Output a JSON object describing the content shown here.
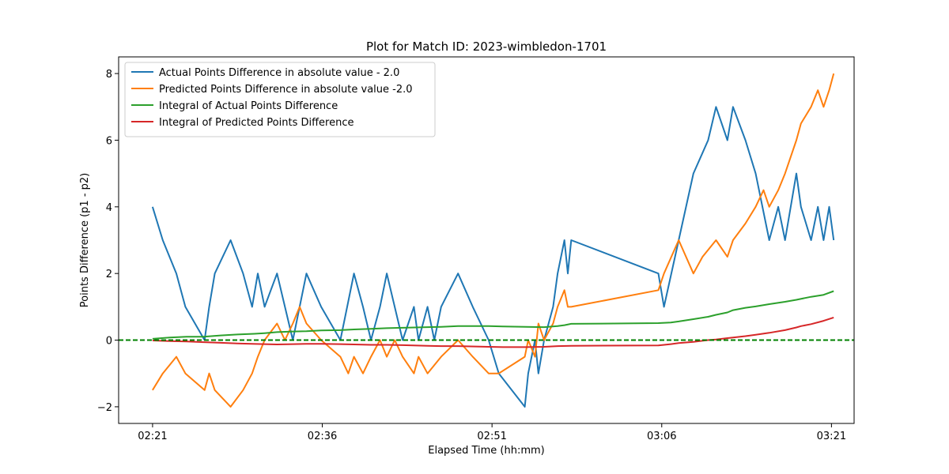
{
  "chart_data": {
    "type": "line",
    "title": "Plot for Match ID: 2023-wimbledon-1701",
    "xlabel": "Elapsed Time (hh:mm)",
    "ylabel": "Points Difference (p1 - p2)",
    "x_unit": "minutes since 02:21",
    "xlim": [
      -3,
      62
    ],
    "ylim": [
      -2.5,
      8.5
    ],
    "x_ticks": [
      {
        "value": 0,
        "label": "02:21"
      },
      {
        "value": 15,
        "label": "02:36"
      },
      {
        "value": 30,
        "label": "02:51"
      },
      {
        "value": 45,
        "label": "03:06"
      },
      {
        "value": 60,
        "label": "03:21"
      }
    ],
    "y_ticks": [
      {
        "value": -2,
        "label": "−2"
      },
      {
        "value": 0,
        "label": "0"
      },
      {
        "value": 2,
        "label": "2"
      },
      {
        "value": 4,
        "label": "4"
      },
      {
        "value": 6,
        "label": "6"
      },
      {
        "value": 8,
        "label": "8"
      }
    ],
    "reference_line": {
      "y": 0,
      "style": "dashed",
      "color": "#008000"
    },
    "legend_position": "upper-left",
    "grid": false,
    "series": [
      {
        "name": "Actual Points Difference in absolute value - 2.0",
        "color": "#1f77b4",
        "points": [
          [
            0,
            4
          ],
          [
            0.9,
            3
          ],
          [
            2.1,
            2
          ],
          [
            2.9,
            1
          ],
          [
            4.6,
            0
          ],
          [
            5.0,
            1
          ],
          [
            5.5,
            2
          ],
          [
            6.9,
            3
          ],
          [
            8.0,
            2
          ],
          [
            8.8,
            1
          ],
          [
            9.3,
            2
          ],
          [
            9.9,
            1
          ],
          [
            11.0,
            2
          ],
          [
            11.7,
            1
          ],
          [
            12.4,
            0
          ],
          [
            13.6,
            2
          ],
          [
            14.9,
            1
          ],
          [
            16.6,
            0
          ],
          [
            17.8,
            2
          ],
          [
            18.6,
            1
          ],
          [
            19.3,
            0
          ],
          [
            20.1,
            1
          ],
          [
            20.7,
            2
          ],
          [
            21.4,
            1
          ],
          [
            22.1,
            0
          ],
          [
            23.1,
            1
          ],
          [
            23.5,
            0
          ],
          [
            24.3,
            1
          ],
          [
            24.9,
            0
          ],
          [
            25.5,
            1
          ],
          [
            27.0,
            2
          ],
          [
            28.3,
            1
          ],
          [
            29.7,
            0
          ],
          [
            30.6,
            -1
          ],
          [
            32.9,
            -2
          ],
          [
            33.2,
            -1
          ],
          [
            33.8,
            0
          ],
          [
            34.1,
            -1
          ],
          [
            34.6,
            0
          ],
          [
            35.4,
            1
          ],
          [
            35.8,
            2
          ],
          [
            36.4,
            3
          ],
          [
            36.7,
            2
          ],
          [
            37.0,
            3
          ],
          [
            44.7,
            2
          ],
          [
            45.2,
            1
          ],
          [
            46.5,
            3
          ],
          [
            47.8,
            5
          ],
          [
            49.1,
            6
          ],
          [
            49.8,
            7
          ],
          [
            50.8,
            6
          ],
          [
            51.3,
            7
          ],
          [
            52.4,
            6
          ],
          [
            53.3,
            5
          ],
          [
            54.5,
            3
          ],
          [
            55.3,
            4
          ],
          [
            55.9,
            3
          ],
          [
            56.9,
            5
          ],
          [
            57.3,
            4
          ],
          [
            58.2,
            3
          ],
          [
            58.8,
            4
          ],
          [
            59.3,
            3
          ],
          [
            59.8,
            4
          ],
          [
            60.2,
            3
          ]
        ]
      },
      {
        "name": "Predicted Points Difference in absolute value -2.0",
        "color": "#ff7f0e",
        "points": [
          [
            0,
            -1.5
          ],
          [
            0.9,
            -1
          ],
          [
            2.1,
            -0.5
          ],
          [
            2.9,
            -1
          ],
          [
            4.6,
            -1.5
          ],
          [
            5.0,
            -1
          ],
          [
            5.5,
            -1.5
          ],
          [
            6.9,
            -2
          ],
          [
            8.0,
            -1.5
          ],
          [
            8.8,
            -1
          ],
          [
            9.3,
            -0.5
          ],
          [
            9.9,
            0
          ],
          [
            11.0,
            0.5
          ],
          [
            11.7,
            0
          ],
          [
            12.4,
            0.5
          ],
          [
            13.0,
            1
          ],
          [
            13.6,
            0.5
          ],
          [
            14.9,
            0
          ],
          [
            16.6,
            -0.5
          ],
          [
            17.3,
            -1
          ],
          [
            17.8,
            -0.5
          ],
          [
            18.6,
            -1
          ],
          [
            19.3,
            -0.5
          ],
          [
            20.1,
            0
          ],
          [
            20.7,
            -0.5
          ],
          [
            21.4,
            0
          ],
          [
            22.1,
            -0.5
          ],
          [
            23.1,
            -1
          ],
          [
            23.5,
            -0.5
          ],
          [
            24.3,
            -1
          ],
          [
            25.5,
            -0.5
          ],
          [
            27.0,
            0
          ],
          [
            28.3,
            -0.5
          ],
          [
            29.7,
            -1
          ],
          [
            30.6,
            -1
          ],
          [
            32.9,
            -0.5
          ],
          [
            33.2,
            0
          ],
          [
            33.8,
            -0.5
          ],
          [
            34.1,
            0.5
          ],
          [
            34.6,
            0
          ],
          [
            35.4,
            0.5
          ],
          [
            35.8,
            1
          ],
          [
            36.4,
            1.5
          ],
          [
            36.7,
            1
          ],
          [
            37.0,
            1
          ],
          [
            44.7,
            1.5
          ],
          [
            45.2,
            2
          ],
          [
            46.5,
            3
          ],
          [
            47.8,
            2
          ],
          [
            48.6,
            2.5
          ],
          [
            49.8,
            3
          ],
          [
            50.8,
            2.5
          ],
          [
            51.3,
            3
          ],
          [
            52.4,
            3.5
          ],
          [
            53.3,
            4
          ],
          [
            54.0,
            4.5
          ],
          [
            54.5,
            4
          ],
          [
            55.3,
            4.5
          ],
          [
            55.9,
            5
          ],
          [
            56.9,
            6
          ],
          [
            57.3,
            6.5
          ],
          [
            58.2,
            7
          ],
          [
            58.8,
            7.5
          ],
          [
            59.3,
            7
          ],
          [
            59.8,
            7.5
          ],
          [
            60.2,
            8
          ]
        ]
      },
      {
        "name": "Integral of Actual Points Difference",
        "color": "#2ca02c",
        "points": [
          [
            0,
            0.04
          ],
          [
            1.5,
            0.08
          ],
          [
            3.0,
            0.1
          ],
          [
            4.5,
            0.1
          ],
          [
            6.0,
            0.14
          ],
          [
            7.5,
            0.17
          ],
          [
            9.0,
            0.19
          ],
          [
            9.9,
            0.21
          ],
          [
            11.0,
            0.24
          ],
          [
            12.4,
            0.26
          ],
          [
            13.6,
            0.27
          ],
          [
            14.9,
            0.29
          ],
          [
            16.6,
            0.3
          ],
          [
            17.8,
            0.32
          ],
          [
            19.3,
            0.34
          ],
          [
            20.7,
            0.36
          ],
          [
            22.1,
            0.37
          ],
          [
            24.3,
            0.39
          ],
          [
            25.5,
            0.4
          ],
          [
            27.0,
            0.42
          ],
          [
            29.7,
            0.42
          ],
          [
            31.0,
            0.41
          ],
          [
            33.0,
            0.4
          ],
          [
            34.6,
            0.39
          ],
          [
            35.8,
            0.42
          ],
          [
            36.4,
            0.45
          ],
          [
            37.0,
            0.49
          ],
          [
            44.7,
            0.51
          ],
          [
            45.8,
            0.53
          ],
          [
            46.5,
            0.56
          ],
          [
            47.8,
            0.63
          ],
          [
            49.1,
            0.7
          ],
          [
            49.8,
            0.76
          ],
          [
            50.8,
            0.83
          ],
          [
            51.3,
            0.9
          ],
          [
            52.4,
            0.97
          ],
          [
            53.3,
            1.01
          ],
          [
            54.5,
            1.08
          ],
          [
            55.9,
            1.15
          ],
          [
            56.9,
            1.21
          ],
          [
            58.2,
            1.3
          ],
          [
            59.3,
            1.36
          ],
          [
            60.2,
            1.47
          ]
        ]
      },
      {
        "name": "Integral of Predicted Points Difference",
        "color": "#d62728",
        "points": [
          [
            0,
            -0.01
          ],
          [
            1.5,
            -0.03
          ],
          [
            3.0,
            -0.04
          ],
          [
            4.5,
            -0.06
          ],
          [
            6.0,
            -0.08
          ],
          [
            7.5,
            -0.1
          ],
          [
            8.8,
            -0.11
          ],
          [
            9.9,
            -0.12
          ],
          [
            11.0,
            -0.13
          ],
          [
            12.4,
            -0.12
          ],
          [
            13.6,
            -0.11
          ],
          [
            14.9,
            -0.11
          ],
          [
            16.6,
            -0.12
          ],
          [
            17.8,
            -0.13
          ],
          [
            19.3,
            -0.14
          ],
          [
            20.7,
            -0.14
          ],
          [
            22.1,
            -0.15
          ],
          [
            24.3,
            -0.17
          ],
          [
            25.5,
            -0.18
          ],
          [
            27.0,
            -0.18
          ],
          [
            29.7,
            -0.2
          ],
          [
            31.0,
            -0.21
          ],
          [
            33.0,
            -0.21
          ],
          [
            34.6,
            -0.2
          ],
          [
            35.8,
            -0.18
          ],
          [
            37.0,
            -0.17
          ],
          [
            44.7,
            -0.16
          ],
          [
            45.8,
            -0.12
          ],
          [
            46.5,
            -0.09
          ],
          [
            47.8,
            -0.05
          ],
          [
            49.1,
            0
          ],
          [
            49.8,
            0.02
          ],
          [
            50.8,
            0.06
          ],
          [
            51.3,
            0.08
          ],
          [
            52.4,
            0.12
          ],
          [
            53.3,
            0.16
          ],
          [
            54.5,
            0.22
          ],
          [
            55.9,
            0.3
          ],
          [
            56.9,
            0.38
          ],
          [
            57.3,
            0.42
          ],
          [
            58.2,
            0.48
          ],
          [
            59.3,
            0.58
          ],
          [
            60.2,
            0.68
          ]
        ]
      }
    ]
  }
}
